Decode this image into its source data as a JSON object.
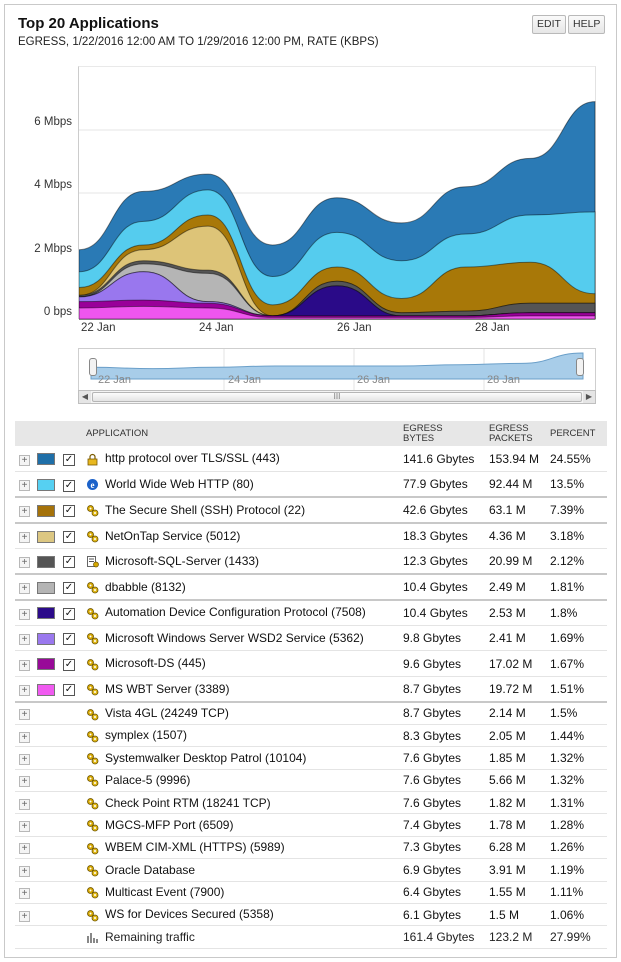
{
  "header": {
    "title": "Top 20 Applications",
    "subtitle": "EGRESS, 1/22/2016 12:00 AM TO 1/29/2016 12:00 PM, RATE (KBPS)",
    "edit_label": "EDIT",
    "help_label": "HELP"
  },
  "chart_data": {
    "type": "area",
    "stacked": true,
    "x": [
      "22 Jan",
      "23 Jan",
      "24 Jan",
      "25 Jan",
      "26 Jan",
      "27 Jan",
      "28 Jan",
      "29 Jan",
      "29 Jan 12:00"
    ],
    "xticks": [
      "22 Jan",
      "24 Jan",
      "26 Jan",
      "28 Jan"
    ],
    "yticks": [
      "0 bps",
      "2 Mbps",
      "4 Mbps",
      "6 Mbps"
    ],
    "ylim": [
      0,
      8
    ],
    "yunit": "Mbps",
    "series": [
      {
        "name": "MS WBT Server (3389)",
        "color": "#ee55ee",
        "values": [
          0.35,
          0.4,
          0.35,
          0.05,
          0.05,
          0.05,
          0.05,
          0.1,
          0.1
        ]
      },
      {
        "name": "Microsoft-DS (445)",
        "color": "#990099",
        "values": [
          0.2,
          0.2,
          0.15,
          0.05,
          0.05,
          0.05,
          0.05,
          0.1,
          0.1
        ]
      },
      {
        "name": "Microsoft Windows Server WSD2 Service (5362)",
        "color": "#9977ee",
        "values": [
          0.15,
          0.9,
          0.05,
          0.0,
          0.0,
          0.0,
          0.0,
          0.0,
          0.0
        ]
      },
      {
        "name": "Automation Device Configuration Protocol (7508)",
        "color": "#2a0a88",
        "values": [
          0.0,
          0.0,
          0.0,
          0.0,
          0.95,
          0.0,
          0.0,
          0.0,
          0.0
        ]
      },
      {
        "name": "dbabble (8132)",
        "color": "#b5b5b5",
        "values": [
          0.0,
          0.25,
          0.9,
          0.0,
          0.0,
          0.0,
          0.0,
          0.0,
          0.0
        ]
      },
      {
        "name": "Microsoft-SQL-Server (1433)",
        "color": "#555555",
        "values": [
          0.05,
          0.1,
          0.1,
          0.0,
          0.15,
          0.1,
          0.15,
          0.3,
          0.3
        ]
      },
      {
        "name": "NetOnTap Service (5012)",
        "color": "#ddc478",
        "values": [
          0.0,
          0.35,
          1.4,
          0.0,
          0.0,
          0.0,
          0.0,
          0.0,
          0.0
        ]
      },
      {
        "name": "The Secure Shell (SSH) Protocol (22)",
        "color": "#a87808",
        "values": [
          0.25,
          0.15,
          0.35,
          0.35,
          0.45,
          0.45,
          1.4,
          1.3,
          0.3
        ]
      },
      {
        "name": "World Wide Web HTTP (80)",
        "color": "#55ccee",
        "values": [
          0.5,
          0.75,
          0.8,
          0.9,
          1.1,
          1.2,
          1.05,
          1.5,
          2.6
        ]
      },
      {
        "name": "http protocol over TLS/SSL (443)",
        "color": "#2a7ab5",
        "values": [
          0.7,
          0.95,
          0.5,
          1.0,
          1.1,
          1.2,
          1.5,
          1.8,
          3.5
        ]
      }
    ]
  },
  "navigator": {
    "labels": [
      "22 Jan",
      "24 Jan",
      "26 Jan",
      "28 Jan"
    ],
    "values": [
      0.45,
      0.4,
      0.45,
      0.5,
      0.5,
      0.5,
      0.55,
      0.6,
      1.0
    ]
  },
  "table": {
    "headers": {
      "application": "APPLICATION",
      "bytes_1": "EGRESS",
      "bytes_2": "BYTES",
      "packets_1": "EGRESS",
      "packets_2": "PACKETS",
      "percent": "PERCENT"
    },
    "rows": [
      {
        "name": "http protocol over TLS/SSL (443)",
        "bytes": "141.6 Gbytes",
        "packets": "153.94 M",
        "percent": "24.55%",
        "color": "#1f6fa8",
        "checked": true,
        "icon": "lock-icon"
      },
      {
        "name": "World Wide Web HTTP (80)",
        "bytes": "77.9 Gbytes",
        "packets": "92.44 M",
        "percent": "13.5%",
        "color": "#56d0f2",
        "checked": true,
        "icon": "browser-icon"
      },
      {
        "name": "The Secure Shell (SSH) Protocol (22)",
        "bytes": "42.6 Gbytes",
        "packets": "63.1 M",
        "percent": "7.39%",
        "color": "#a5720a",
        "checked": true,
        "icon": "gears-icon"
      },
      {
        "name": "NetOnTap Service (5012)",
        "bytes": "18.3 Gbytes",
        "packets": "4.36 M",
        "percent": "3.18%",
        "color": "#dcc782",
        "checked": true,
        "icon": "gears-icon"
      },
      {
        "name": "Microsoft-SQL-Server (1433)",
        "bytes": "12.3 Gbytes",
        "packets": "20.99 M",
        "percent": "2.12%",
        "color": "#555555",
        "checked": true,
        "icon": "database-server-icon"
      },
      {
        "name": "dbabble (8132)",
        "bytes": "10.4 Gbytes",
        "packets": "2.49 M",
        "percent": "1.81%",
        "color": "#b4b4b4",
        "checked": true,
        "icon": "gears-icon"
      },
      {
        "name": "Automation Device Configuration Protocol (7508)",
        "bytes": "10.4 Gbytes",
        "packets": "2.53 M",
        "percent": "1.8%",
        "color": "#2c0b8a",
        "checked": true,
        "icon": "gears-icon"
      },
      {
        "name": "Microsoft Windows Server WSD2 Service (5362)",
        "bytes": "9.8 Gbytes",
        "packets": "2.41 M",
        "percent": "1.69%",
        "color": "#9a78ee",
        "checked": true,
        "icon": "gears-icon"
      },
      {
        "name": "Microsoft-DS (445)",
        "bytes": "9.6 Gbytes",
        "packets": "17.02 M",
        "percent": "1.67%",
        "color": "#980a98",
        "checked": true,
        "icon": "gears-icon"
      },
      {
        "name": "MS WBT Server (3389)",
        "bytes": "8.7 Gbytes",
        "packets": "19.72 M",
        "percent": "1.51%",
        "color": "#f05af0",
        "checked": true,
        "icon": "gears-icon"
      },
      {
        "name": "Vista 4GL (24249 TCP)",
        "bytes": "8.7 Gbytes",
        "packets": "2.14 M",
        "percent": "1.5%",
        "color": "",
        "checked": false,
        "icon": "gears-icon"
      },
      {
        "name": "symplex (1507)",
        "bytes": "8.3 Gbytes",
        "packets": "2.05 M",
        "percent": "1.44%",
        "color": "",
        "checked": false,
        "icon": "gears-icon"
      },
      {
        "name": "Systemwalker Desktop Patrol (10104)",
        "bytes": "7.6 Gbytes",
        "packets": "1.85 M",
        "percent": "1.32%",
        "color": "",
        "checked": false,
        "icon": "gears-icon"
      },
      {
        "name": "Palace-5 (9996)",
        "bytes": "7.6 Gbytes",
        "packets": "5.66 M",
        "percent": "1.32%",
        "color": "",
        "checked": false,
        "icon": "gears-icon"
      },
      {
        "name": "Check Point RTM (18241 TCP)",
        "bytes": "7.6 Gbytes",
        "packets": "1.82 M",
        "percent": "1.31%",
        "color": "",
        "checked": false,
        "icon": "gears-icon"
      },
      {
        "name": "MGCS-MFP Port (6509)",
        "bytes": "7.4 Gbytes",
        "packets": "1.78 M",
        "percent": "1.28%",
        "color": "",
        "checked": false,
        "icon": "gears-icon"
      },
      {
        "name": "WBEM CIM-XML (HTTPS) (5989)",
        "bytes": "7.3 Gbytes",
        "packets": "6.28 M",
        "percent": "1.26%",
        "color": "",
        "checked": false,
        "icon": "gears-icon"
      },
      {
        "name": "Oracle Database",
        "bytes": "6.9 Gbytes",
        "packets": "3.91 M",
        "percent": "1.19%",
        "color": "",
        "checked": false,
        "icon": "gears-icon"
      },
      {
        "name": "Multicast Event (7900)",
        "bytes": "6.4 Gbytes",
        "packets": "1.55 M",
        "percent": "1.11%",
        "color": "",
        "checked": false,
        "icon": "gears-icon"
      },
      {
        "name": "WS for Devices Secured (5358)",
        "bytes": "6.1 Gbytes",
        "packets": "1.5 M",
        "percent": "1.06%",
        "color": "",
        "checked": false,
        "icon": "gears-icon"
      }
    ],
    "remaining": {
      "name": "Remaining traffic",
      "bytes": "161.4 Gbytes",
      "packets": "123.2 M",
      "percent": "27.99%",
      "icon": "bar-chart-icon"
    }
  }
}
